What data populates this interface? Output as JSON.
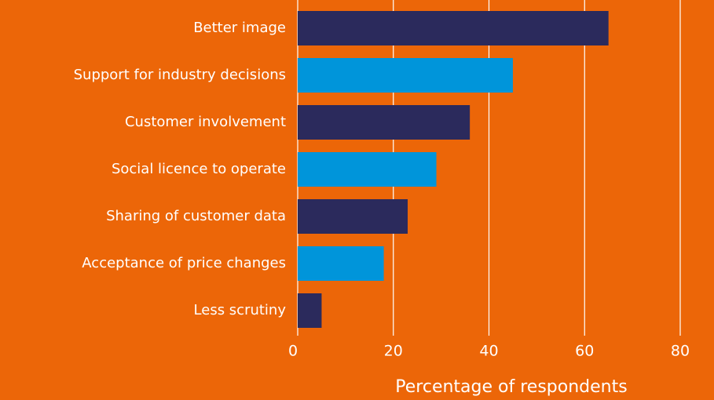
{
  "chart_data": {
    "type": "barh",
    "categories": [
      "Better image",
      "Support for industry decisions",
      "Customer involvement",
      "Social licence to operate",
      "Sharing of customer data",
      "Acceptance of price changes",
      "Less scrutiny"
    ],
    "values": [
      65,
      45,
      36,
      29,
      23,
      18,
      5
    ],
    "colors": [
      "#2b2a5c",
      "#0095da",
      "#2b2a5c",
      "#0095da",
      "#2b2a5c",
      "#0095da",
      "#2b2a5c"
    ],
    "xlabel": "Percentage of respondents",
    "xlim": [
      0,
      80
    ],
    "xticks": [
      0,
      20,
      40,
      60,
      80
    ],
    "grid": true
  }
}
